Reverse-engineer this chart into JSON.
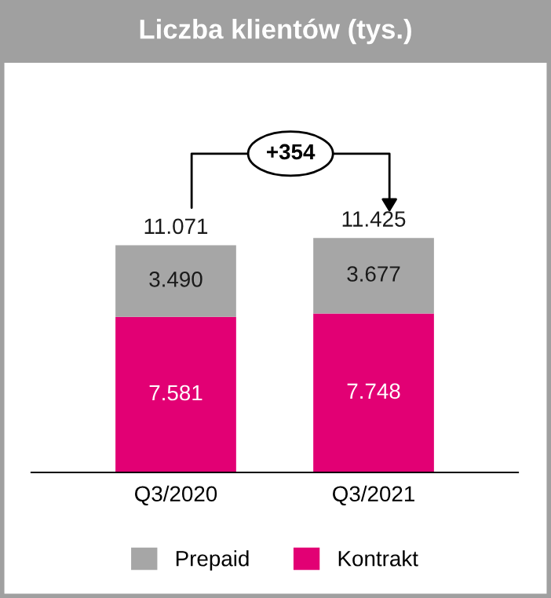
{
  "chart_data": {
    "type": "bar",
    "title": "Liczba klientów (tys.)",
    "stacked": true,
    "categories": [
      "Q3/2020",
      "Q3/2021"
    ],
    "series": [
      {
        "name": "Kontrakt",
        "color": "#e20074",
        "values": [
          7581,
          7748
        ],
        "value_labels": [
          "7.581",
          "7.748"
        ]
      },
      {
        "name": "Prepaid",
        "color": "#a6a6a6",
        "values": [
          3490,
          3677
        ],
        "value_labels": [
          "3.490",
          "3.677"
        ]
      }
    ],
    "totals": [
      "11.071",
      "11.425"
    ],
    "annotations": [
      "+354"
    ],
    "legend": "bottom",
    "grid": false
  }
}
